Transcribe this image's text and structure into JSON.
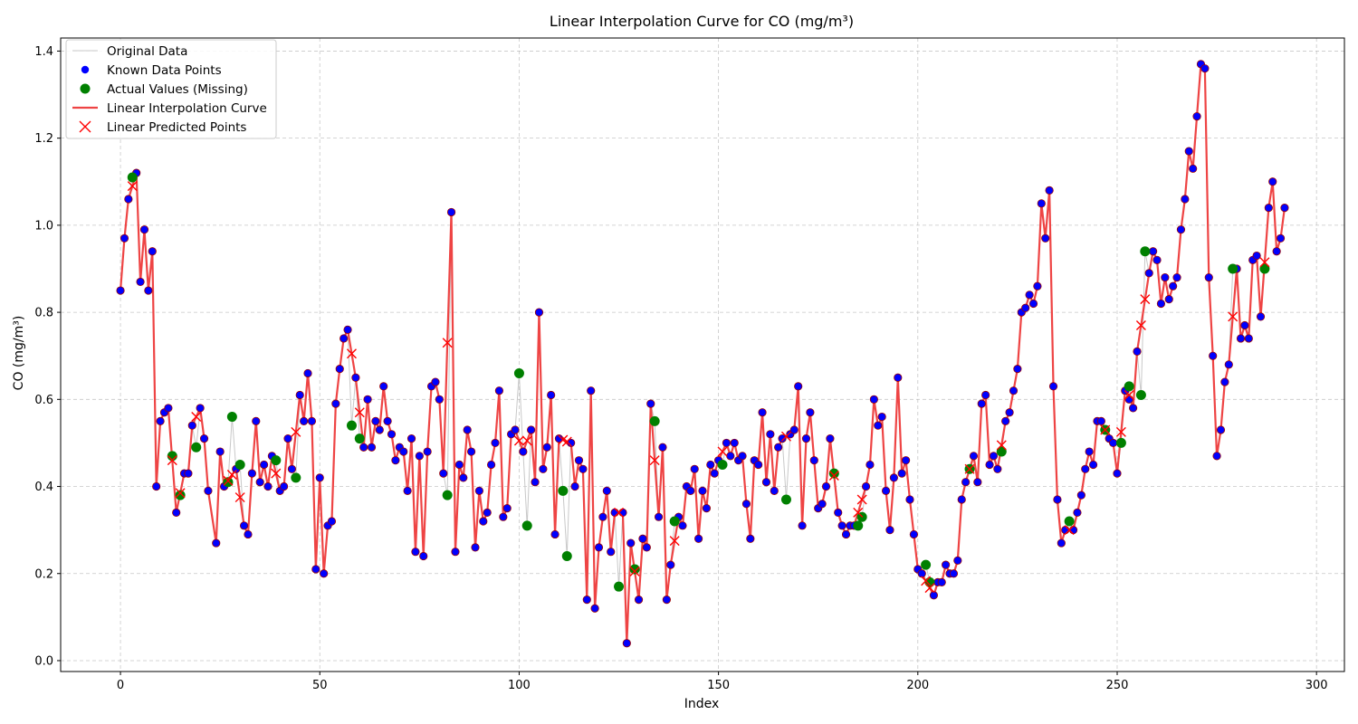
{
  "chart_data": {
    "type": "line",
    "title": "Linear Interpolation Curve for CO (mg/m³)",
    "xlabel": "Index",
    "ylabel": "CO (mg/m³)",
    "xlim": [
      -15,
      307
    ],
    "ylim": [
      -0.025,
      1.43
    ],
    "xticks": [
      0,
      50,
      100,
      150,
      200,
      250,
      300
    ],
    "xtick_labels": [
      "0",
      "50",
      "100",
      "150",
      "200",
      "250",
      "300"
    ],
    "yticks": [
      0.0,
      0.2,
      0.4,
      0.6,
      0.8,
      1.0,
      1.2,
      1.4
    ],
    "ytick_labels": [
      "0.0",
      "0.2",
      "0.4",
      "0.6",
      "0.8",
      "1.0",
      "1.2",
      "1.4"
    ],
    "grid": true,
    "legend_position": "top-left",
    "legend": [
      {
        "label": "Original Data",
        "kind": "line",
        "color": "#c8c8c8"
      },
      {
        "label": "Known Data Points",
        "kind": "dot",
        "color": "#0000ff"
      },
      {
        "label": "Actual Values (Missing)",
        "kind": "bigdot",
        "color": "#008000"
      },
      {
        "label": "Linear Interpolation Curve",
        "kind": "line",
        "color": "#ee4444"
      },
      {
        "label": "Linear Predicted Points",
        "kind": "cross",
        "color": "#ff0000"
      }
    ],
    "colors": {
      "original": "#c8c8c8",
      "known": "#0000ff",
      "known_edge": "#9a0000",
      "actual": "#008000",
      "curve": "#ee4444",
      "predicted": "#ff0000"
    },
    "series": [
      {
        "name": "Known Data Points",
        "x": [
          0,
          1,
          2,
          4,
          5,
          6,
          7,
          8,
          9,
          10,
          11,
          12,
          14,
          16,
          17,
          18,
          20,
          21,
          22,
          24,
          25,
          26,
          29,
          31,
          32,
          33,
          34,
          35,
          36,
          37,
          38,
          40,
          41,
          42,
          43,
          45,
          46,
          47,
          48,
          49,
          50,
          51,
          52,
          53,
          54,
          55,
          56,
          57,
          59,
          61,
          62,
          63,
          64,
          65,
          66,
          67,
          68,
          69,
          70,
          71,
          72,
          73,
          74,
          75,
          76,
          77,
          78,
          79,
          80,
          81,
          83,
          84,
          85,
          86,
          87,
          88,
          89,
          90,
          91,
          92,
          93,
          94,
          95,
          96,
          97,
          98,
          99,
          101,
          103,
          104,
          105,
          106,
          107,
          108,
          109,
          110,
          113,
          114,
          115,
          116,
          117,
          118,
          119,
          120,
          121,
          122,
          123,
          124,
          126,
          127,
          128,
          130,
          131,
          132,
          133,
          135,
          136,
          137,
          138,
          140,
          141,
          142,
          143,
          144,
          145,
          146,
          147,
          148,
          149,
          150,
          152,
          153,
          154,
          155,
          156,
          157,
          158,
          159,
          160,
          161,
          162,
          163,
          164,
          165,
          166,
          168,
          169,
          170,
          171,
          172,
          173,
          174,
          175,
          176,
          177,
          178,
          180,
          181,
          182,
          183,
          184,
          187,
          188,
          189,
          190,
          191,
          192,
          193,
          194,
          195,
          196,
          197,
          198,
          199,
          200,
          201,
          204,
          205,
          206,
          207,
          208,
          209,
          210,
          211,
          212,
          214,
          215,
          216,
          217,
          218,
          219,
          220,
          222,
          223,
          224,
          225,
          226,
          227,
          228,
          229,
          230,
          231,
          232,
          233,
          234,
          235,
          236,
          237,
          239,
          240,
          241,
          242,
          243,
          244,
          245,
          246,
          248,
          249,
          250,
          252,
          253,
          254,
          255,
          258,
          259,
          260,
          261,
          262,
          263,
          264,
          265,
          266,
          267,
          268,
          269,
          270,
          271,
          272,
          273,
          274,
          275,
          276,
          277,
          278,
          280,
          281,
          282,
          283,
          284,
          285,
          286,
          288,
          289,
          290,
          291,
          292
        ],
        "y": [
          0.85,
          0.97,
          1.06,
          1.12,
          0.87,
          0.99,
          0.85,
          0.94,
          0.4,
          0.55,
          0.57,
          0.58,
          0.34,
          0.43,
          0.43,
          0.54,
          0.58,
          0.51,
          0.39,
          0.27,
          0.48,
          0.4,
          0.44,
          0.31,
          0.29,
          0.43,
          0.55,
          0.41,
          0.45,
          0.4,
          0.47,
          0.39,
          0.4,
          0.51,
          0.44,
          0.61,
          0.55,
          0.66,
          0.55,
          0.21,
          0.42,
          0.2,
          0.31,
          0.32,
          0.59,
          0.67,
          0.74,
          0.76,
          0.65,
          0.49,
          0.6,
          0.49,
          0.55,
          0.53,
          0.63,
          0.55,
          0.52,
          0.46,
          0.49,
          0.48,
          0.39,
          0.51,
          0.25,
          0.47,
          0.24,
          0.48,
          0.63,
          0.64,
          0.6,
          0.43,
          1.03,
          0.25,
          0.45,
          0.42,
          0.53,
          0.48,
          0.26,
          0.39,
          0.32,
          0.34,
          0.45,
          0.5,
          0.62,
          0.33,
          0.35,
          0.52,
          0.53,
          0.48,
          0.53,
          0.41,
          0.8,
          0.44,
          0.49,
          0.61,
          0.29,
          0.51,
          0.5,
          0.4,
          0.46,
          0.44,
          0.14,
          0.62,
          0.12,
          0.26,
          0.33,
          0.39,
          0.25,
          0.34,
          0.34,
          0.04,
          0.27,
          0.14,
          0.28,
          0.26,
          0.59,
          0.33,
          0.49,
          0.14,
          0.22,
          0.33,
          0.31,
          0.4,
          0.39,
          0.44,
          0.28,
          0.39,
          0.35,
          0.45,
          0.43,
          0.46,
          0.5,
          0.47,
          0.5,
          0.46,
          0.47,
          0.36,
          0.28,
          0.46,
          0.45,
          0.57,
          0.41,
          0.52,
          0.39,
          0.49,
          0.51,
          0.52,
          0.53,
          0.63,
          0.31,
          0.51,
          0.57,
          0.46,
          0.35,
          0.36,
          0.4,
          0.51,
          0.34,
          0.31,
          0.29,
          0.31,
          0.31,
          0.4,
          0.45,
          0.6,
          0.54,
          0.56,
          0.39,
          0.3,
          0.42,
          0.65,
          0.43,
          0.46,
          0.37,
          0.29,
          0.21,
          0.2,
          0.15,
          0.18,
          0.18,
          0.22,
          0.2,
          0.2,
          0.23,
          0.37,
          0.41,
          0.47,
          0.41,
          0.59,
          0.61,
          0.45,
          0.47,
          0.44,
          0.55,
          0.57,
          0.62,
          0.67,
          0.8,
          0.81,
          0.84,
          0.82,
          0.86,
          1.05,
          0.97,
          1.08,
          0.63,
          0.37,
          0.27,
          0.3,
          0.3,
          0.34,
          0.38,
          0.44,
          0.48,
          0.45,
          0.55,
          0.55,
          0.51,
          0.5,
          0.43,
          0.62,
          0.6,
          0.58,
          0.71,
          0.89,
          0.94,
          0.92,
          0.82,
          0.88,
          0.83,
          0.86,
          0.88,
          0.99,
          1.06,
          1.17,
          1.13,
          1.25,
          1.37,
          1.36,
          0.88,
          0.7,
          0.47,
          0.53,
          0.64,
          0.68,
          0.9,
          0.74,
          0.77,
          0.74,
          0.92,
          0.93,
          0.79,
          1.04,
          1.1,
          0.94,
          0.97,
          1.04
        ]
      },
      {
        "name": "Actual Values (Missing)",
        "x": [
          3,
          13,
          15,
          19,
          27,
          28,
          30,
          39,
          44,
          58,
          60,
          82,
          100,
          102,
          111,
          112,
          125,
          129,
          134,
          139,
          151,
          167,
          179,
          185,
          186,
          202,
          203,
          213,
          221,
          238,
          247,
          251,
          253,
          256,
          257,
          279,
          287
        ],
        "y": [
          1.11,
          0.47,
          0.38,
          0.49,
          0.41,
          0.56,
          0.45,
          0.46,
          0.42,
          0.54,
          0.51,
          0.38,
          0.66,
          0.31,
          0.39,
          0.24,
          0.17,
          0.21,
          0.55,
          0.32,
          0.45,
          0.37,
          0.43,
          0.31,
          0.33,
          0.22,
          0.18,
          0.44,
          0.48,
          0.32,
          0.53,
          0.5,
          0.63,
          0.61,
          0.94,
          0.9,
          0.9
        ]
      },
      {
        "name": "Linear Predicted Points",
        "x": [
          3,
          13,
          15,
          19,
          27,
          28,
          30,
          39,
          44,
          58,
          60,
          82,
          100,
          102,
          111,
          112,
          125,
          129,
          134,
          139,
          151,
          167,
          179,
          185,
          186,
          202,
          203,
          213,
          221,
          238,
          247,
          251,
          253,
          256,
          257,
          279,
          287
        ],
        "y": [
          1.09,
          0.46,
          0.385,
          0.56,
          0.413,
          0.427,
          0.375,
          0.43,
          0.525,
          0.705,
          0.57,
          0.73,
          0.505,
          0.505,
          0.507,
          0.503,
          0.34,
          0.205,
          0.46,
          0.275,
          0.48,
          0.515,
          0.425,
          0.34,
          0.37,
          0.183,
          0.167,
          0.44,
          0.495,
          0.3,
          0.53,
          0.525,
          0.61,
          0.77,
          0.83,
          0.79,
          0.915
        ]
      }
    ]
  }
}
